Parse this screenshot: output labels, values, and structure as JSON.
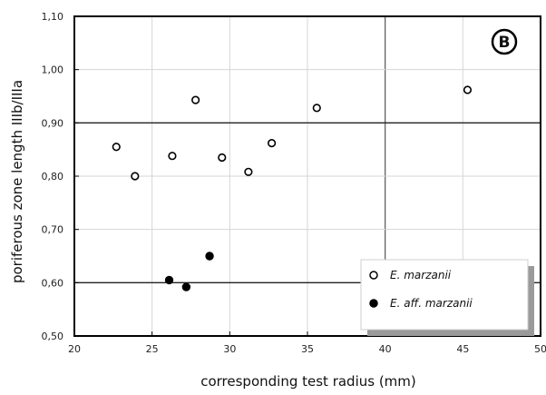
{
  "chart_data": {
    "type": "scatter",
    "xlabel": "corresponding test radius (mm)",
    "ylabel": "poriferous zone length IIIb/IIIa",
    "xlim": [
      20,
      50
    ],
    "ylim": [
      0.5,
      1.1
    ],
    "x_ticks": [
      "20",
      "25",
      "30",
      "35",
      "40",
      "45",
      "50"
    ],
    "y_ticks": [
      "0,50",
      "0,60",
      "0,70",
      "0,80",
      "0,90",
      "1,00",
      "1,10"
    ],
    "panel_label": "B",
    "grid": true,
    "legend_placement": "bottom-right",
    "series": [
      {
        "name": "E. marzanii",
        "marker": "open-circle",
        "points": [
          {
            "x": 22.7,
            "y": 0.855
          },
          {
            "x": 23.9,
            "y": 0.8
          },
          {
            "x": 26.3,
            "y": 0.838
          },
          {
            "x": 27.8,
            "y": 0.943
          },
          {
            "x": 29.5,
            "y": 0.835
          },
          {
            "x": 31.2,
            "y": 0.808
          },
          {
            "x": 32.7,
            "y": 0.862
          },
          {
            "x": 35.6,
            "y": 0.928
          },
          {
            "x": 45.3,
            "y": 0.962
          }
        ]
      },
      {
        "name": "E. aff. marzanii",
        "marker": "filled-circle",
        "points": [
          {
            "x": 26.1,
            "y": 0.605
          },
          {
            "x": 27.2,
            "y": 0.592
          },
          {
            "x": 28.7,
            "y": 0.65
          }
        ]
      }
    ]
  }
}
